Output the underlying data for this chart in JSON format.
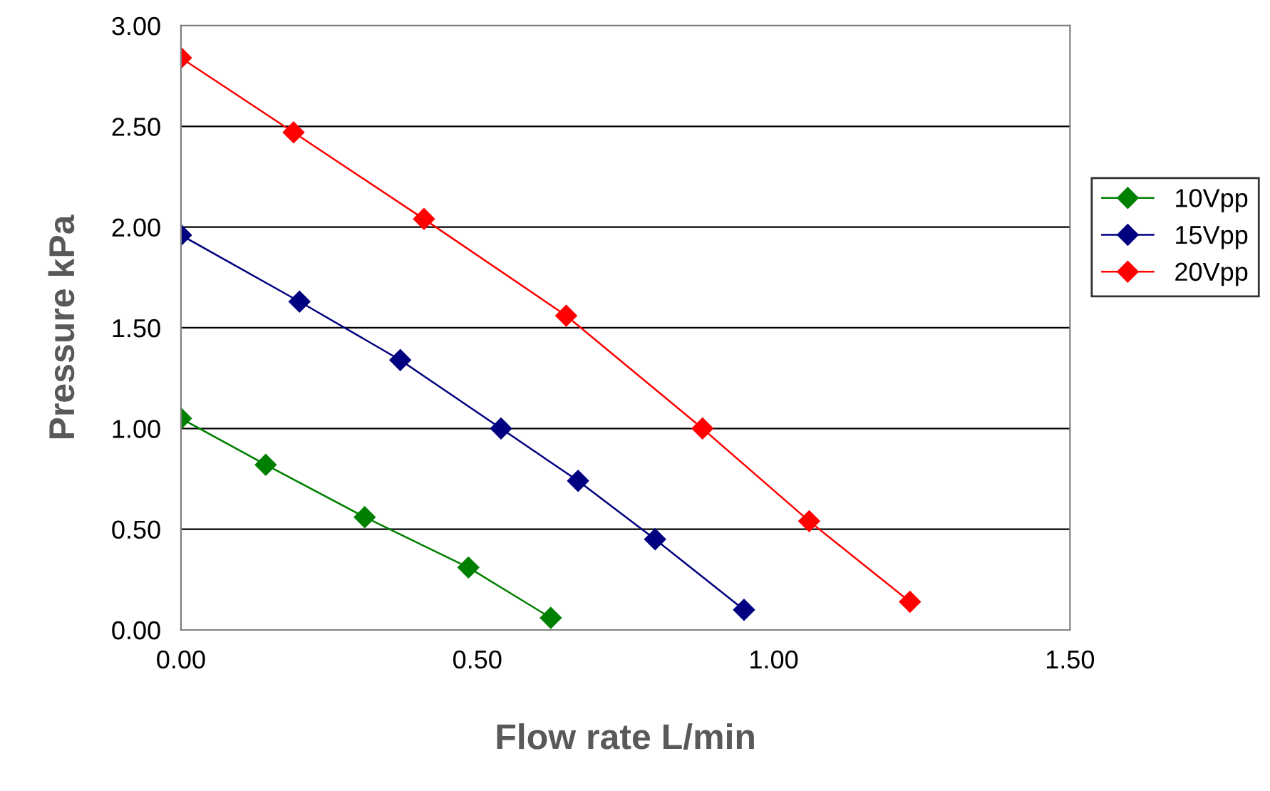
{
  "chart_data": {
    "type": "line",
    "xlabel": "Flow rate L/min",
    "ylabel": "Pressure kPa",
    "xlim": [
      0,
      1.5
    ],
    "ylim": [
      0,
      3
    ],
    "xticks": [
      {
        "value": 0,
        "label": "0.00"
      },
      {
        "value": 0.5,
        "label": "0.50"
      },
      {
        "value": 1,
        "label": "1.00"
      },
      {
        "value": 1.5,
        "label": "1.50"
      }
    ],
    "yticks": [
      {
        "value": 0,
        "label": "0.00"
      },
      {
        "value": 0.5,
        "label": "0.50"
      },
      {
        "value": 1,
        "label": "1.00"
      },
      {
        "value": 1.5,
        "label": "1.50"
      },
      {
        "value": 2,
        "label": "2.00"
      },
      {
        "value": 2.5,
        "label": "2.50"
      },
      {
        "value": 3,
        "label": "3.00"
      }
    ],
    "grid": "y",
    "legend": "right",
    "marker": "diamond",
    "line_style": "solid",
    "series": [
      {
        "name": "10Vpp",
        "color": "#008000",
        "x": [
          0,
          0.143,
          0.31,
          0.485,
          0.624
        ],
        "values": [
          1.05,
          0.82,
          0.56,
          0.31,
          0.06
        ]
      },
      {
        "name": "15Vpp",
        "color": "#000080",
        "x": [
          0,
          0.2,
          0.37,
          0.54,
          0.67,
          0.8,
          0.95
        ],
        "values": [
          1.96,
          1.63,
          1.34,
          1.0,
          0.74,
          0.45,
          0.1
        ]
      },
      {
        "name": "20Vpp",
        "color": "#ff0000",
        "x": [
          0,
          0.19,
          0.41,
          0.65,
          0.88,
          1.06,
          1.23
        ],
        "values": [
          2.84,
          2.47,
          2.04,
          1.56,
          1.0,
          0.54,
          0.14
        ]
      }
    ]
  }
}
